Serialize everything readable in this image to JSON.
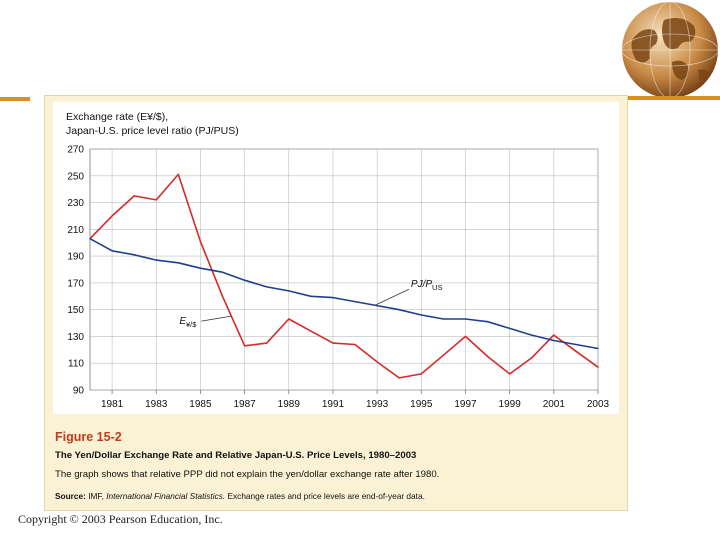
{
  "figure": {
    "number": "Figure 15-2",
    "title": "The Yen/Dollar Exchange Rate and Relative Japan-U.S. Price Levels, 1980–2003",
    "description": "The graph shows that relative PPP did not explain the yen/dollar exchange rate after 1980.",
    "source_label": "Source:",
    "source_ref": "IMF,",
    "source_publication": "International Financial Statistics.",
    "source_note": "Exchange rates and price levels are end-of-year data."
  },
  "footer": {
    "copyright": "Copyright © 2003 Pearson Education, Inc."
  },
  "colors": {
    "exchange_rate": "#d42a2a",
    "price_ratio": "#1f3f8f",
    "figure_number": "#c53a1c",
    "panel": "#fbf2d6",
    "accent": "#d9901f"
  },
  "chart_data": {
    "type": "line",
    "title": "",
    "ylabel_line1": "Exchange rate (E¥/$),",
    "ylabel_line2": "Japan-U.S. price level ratio (PJ/PUS)",
    "xlabel": "",
    "xlim": [
      1980,
      2003
    ],
    "ylim": [
      90,
      270
    ],
    "yticks": [
      90,
      110,
      130,
      150,
      170,
      190,
      210,
      230,
      250,
      270
    ],
    "xticks": [
      1981,
      1983,
      1985,
      1987,
      1989,
      1991,
      1993,
      1995,
      1997,
      1999,
      2001,
      2003
    ],
    "grid": true,
    "series": [
      {
        "name": "E¥/$",
        "color_key": "exchange_rate",
        "x": [
          1980,
          1981,
          1982,
          1983,
          1984,
          1985,
          1986,
          1987,
          1988,
          1989,
          1990,
          1991,
          1992,
          1993,
          1994,
          1995,
          1996,
          1997,
          1998,
          1999,
          2000,
          2001,
          2002,
          2003
        ],
        "values": [
          203,
          220,
          235,
          232,
          251,
          201,
          160,
          123,
          125,
          143,
          134,
          125,
          124,
          111,
          99,
          102,
          116,
          130,
          115,
          102,
          114,
          131,
          119,
          107
        ]
      },
      {
        "name": "PJ/PUS",
        "color_key": "price_ratio",
        "x": [
          1980,
          1981,
          1982,
          1983,
          1984,
          1985,
          1986,
          1987,
          1988,
          1989,
          1990,
          1991,
          1992,
          1993,
          1994,
          1995,
          1996,
          1997,
          1998,
          1999,
          2000,
          2001,
          2002,
          2003
        ],
        "values": [
          203,
          194,
          191,
          187,
          185,
          181,
          178,
          172,
          167,
          164,
          160,
          159,
          156,
          153,
          150,
          146,
          143,
          143,
          141,
          136,
          131,
          127,
          124,
          121
        ]
      }
    ],
    "annotations": [
      {
        "label_main": "E",
        "label_sub": "¥/$",
        "series": "E¥/$",
        "at_year": 1986.4
      },
      {
        "label_main": "PJ/P",
        "label_sub": "US",
        "series": "PJ/PUS",
        "at_year": 1992.9
      }
    ]
  }
}
